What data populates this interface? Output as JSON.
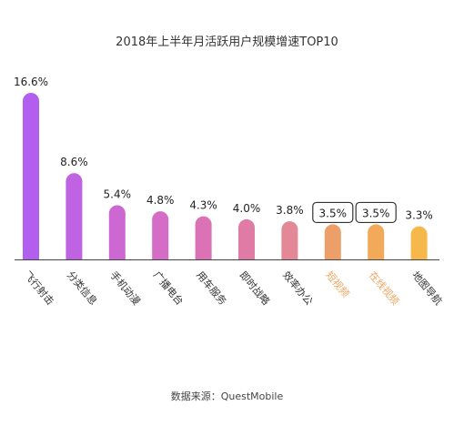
{
  "chart_data": {
    "type": "bar",
    "title": "2018年上半年月活跃用户规模增速TOP10",
    "categories": [
      "飞行射击",
      "分类信息",
      "手机动漫",
      "广播电台",
      "用车服务",
      "即时战略",
      "效率办公",
      "短视频",
      "在线视频",
      "地图导航"
    ],
    "values": [
      16.6,
      8.6,
      5.4,
      4.8,
      4.3,
      4.0,
      3.8,
      3.5,
      3.5,
      3.3
    ],
    "value_labels": [
      "16.6%",
      "8.6%",
      "5.4%",
      "4.8%",
      "4.3%",
      "4.0%",
      "3.8%",
      "3.5%",
      "3.5%",
      "3.3%"
    ],
    "highlighted": [
      7,
      8
    ],
    "bar_colors": [
      "#b25ff0",
      "#bf63e2",
      "#cd68d2",
      "#d56dc6",
      "#dc72b6",
      "#e07ba6",
      "#e38896",
      "#ed9f6a",
      "#f2aa5a",
      "#f6b84a"
    ],
    "category_label_color": "#333333",
    "highlight_label_color": "#f0a460",
    "xlabel": "",
    "ylabel": "",
    "ylim": [
      0,
      16.6
    ],
    "grid": false,
    "legend": "none"
  },
  "source": "数据来源：QuestMobile"
}
